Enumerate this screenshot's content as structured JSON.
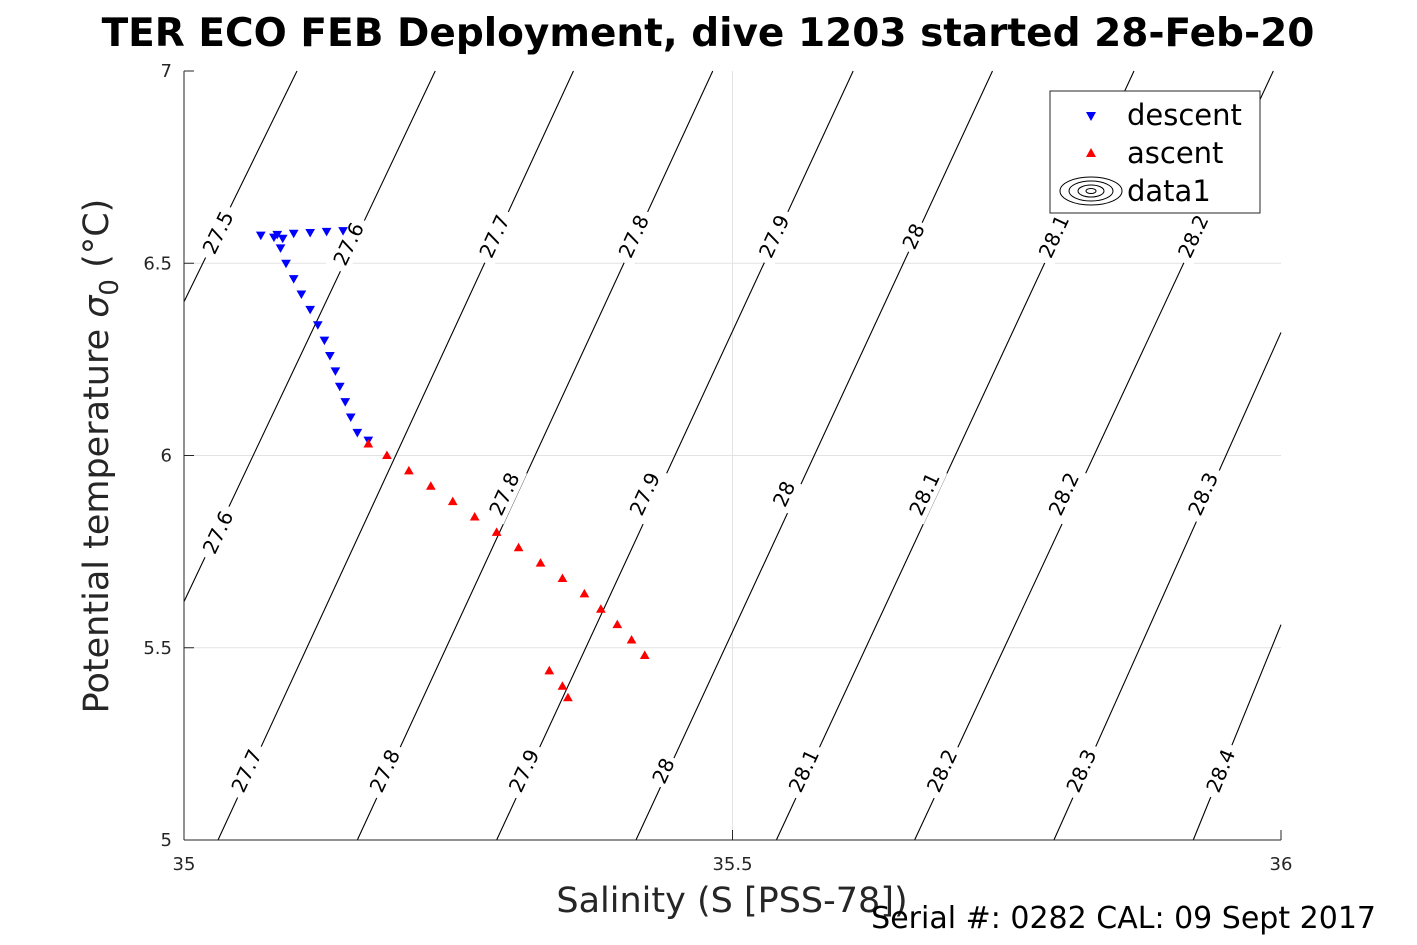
{
  "chart_data": {
    "type": "scatter",
    "title": "TER ECO FEB Deployment, dive 1203 started 28-Feb-20",
    "xlabel": "Salinity (S [PSS-78])",
    "ylabel_main": "Potential temperature ",
    "ylabel_symbol": "σ",
    "ylabel_subscript": "0",
    "ylabel_unit": " (°C)",
    "xlim": [
      35,
      36
    ],
    "ylim": [
      5,
      7
    ],
    "xticks": [
      35,
      35.5,
      36
    ],
    "xtick_labels": [
      "35",
      "35.5",
      "36"
    ],
    "yticks": [
      5,
      5.5,
      6,
      6.5,
      7
    ],
    "ytick_labels": [
      "5",
      "5.5",
      "6",
      "6.5",
      "7"
    ],
    "grid": true,
    "legend_position": "top-right",
    "legend": [
      "descent",
      "ascent",
      "data1"
    ],
    "series": [
      {
        "name": "descent",
        "marker": "triangle-down",
        "color": "#0000ff",
        "points": [
          [
            35.145,
            6.585
          ],
          [
            35.13,
            6.583
          ],
          [
            35.115,
            6.58
          ],
          [
            35.1,
            6.578
          ],
          [
            35.085,
            6.575
          ],
          [
            35.07,
            6.573
          ],
          [
            35.082,
            6.568
          ],
          [
            35.09,
            6.565
          ],
          [
            35.088,
            6.54
          ],
          [
            35.093,
            6.5
          ],
          [
            35.1,
            6.46
          ],
          [
            35.107,
            6.42
          ],
          [
            35.115,
            6.38
          ],
          [
            35.122,
            6.34
          ],
          [
            35.128,
            6.3
          ],
          [
            35.133,
            6.26
          ],
          [
            35.138,
            6.22
          ],
          [
            35.142,
            6.18
          ],
          [
            35.147,
            6.14
          ],
          [
            35.152,
            6.1
          ],
          [
            35.158,
            6.06
          ],
          [
            35.168,
            6.04
          ]
        ]
      },
      {
        "name": "ascent",
        "marker": "triangle-up",
        "color": "#ff0000",
        "points": [
          [
            35.168,
            6.03
          ],
          [
            35.185,
            6.0
          ],
          [
            35.205,
            5.96
          ],
          [
            35.225,
            5.92
          ],
          [
            35.245,
            5.88
          ],
          [
            35.265,
            5.84
          ],
          [
            35.285,
            5.8
          ],
          [
            35.305,
            5.76
          ],
          [
            35.325,
            5.72
          ],
          [
            35.345,
            5.68
          ],
          [
            35.365,
            5.64
          ],
          [
            35.38,
            5.6
          ],
          [
            35.395,
            5.56
          ],
          [
            35.408,
            5.52
          ],
          [
            35.42,
            5.48
          ],
          [
            35.333,
            5.44
          ],
          [
            35.345,
            5.4
          ],
          [
            35.35,
            5.37
          ]
        ]
      }
    ],
    "contours": {
      "name": "data1",
      "levels": [
        27.5,
        27.6,
        27.7,
        27.8,
        27.9,
        28,
        28.1,
        28.2,
        28.3,
        28.4
      ],
      "segments": [
        {
          "level": 27.5,
          "p0": [
            35.0,
            6.4
          ],
          "p1": [
            35.103,
            7.0
          ],
          "labels": [
            {
              "text": "27.5",
              "at": [
                35.031,
                6.58
              ]
            }
          ]
        },
        {
          "level": 27.6,
          "p0": [
            35.0,
            5.62
          ],
          "p1": [
            35.229,
            7.0
          ],
          "labels": [
            {
              "text": "27.6",
              "at": [
                35.15,
                6.55
              ]
            },
            {
              "text": "27.6",
              "at": [
                35.031,
                5.8
              ]
            }
          ]
        },
        {
          "level": 27.7,
          "p0": [
            35.031,
            5.0
          ],
          "p1": [
            35.355,
            7.0
          ],
          "labels": [
            {
              "text": "27.7",
              "at": [
                35.283,
                6.57
              ]
            },
            {
              "text": "27.7",
              "at": [
                35.057,
                5.18
              ]
            }
          ]
        },
        {
          "level": 27.8,
          "p0": [
            35.158,
            5.0
          ],
          "p1": [
            35.482,
            7.0
          ],
          "labels": [
            {
              "text": "27.8",
              "at": [
                35.41,
                6.57
              ]
            },
            {
              "text": "27.8",
              "at": [
                35.292,
                5.9
              ]
            },
            {
              "text": "27.8",
              "at": [
                35.183,
                5.18
              ]
            }
          ]
        },
        {
          "level": 27.9,
          "p0": [
            35.285,
            5.0
          ],
          "p1": [
            35.61,
            7.0
          ],
          "labels": [
            {
              "text": "27.9",
              "at": [
                35.538,
                6.57
              ]
            },
            {
              "text": "27.9",
              "at": [
                35.42,
                5.9
              ]
            },
            {
              "text": "27.9",
              "at": [
                35.31,
                5.18
              ]
            }
          ]
        },
        {
          "level": 28.0,
          "p0": [
            35.412,
            5.0
          ],
          "p1": [
            35.737,
            7.0
          ],
          "labels": [
            {
              "text": "28",
              "at": [
                35.665,
                6.57
              ]
            },
            {
              "text": "28",
              "at": [
                35.547,
                5.9
              ]
            },
            {
              "text": "28",
              "at": [
                35.437,
                5.18
              ]
            }
          ]
        },
        {
          "level": 28.1,
          "p0": [
            35.54,
            5.0
          ],
          "p1": [
            35.866,
            7.0
          ],
          "labels": [
            {
              "text": "28.1",
              "at": [
                35.793,
                6.57
              ]
            },
            {
              "text": "28.1",
              "at": [
                35.675,
                5.9
              ]
            },
            {
              "text": "28.1",
              "at": [
                35.565,
                5.18
              ]
            }
          ]
        },
        {
          "level": 28.2,
          "p0": [
            35.666,
            5.0
          ],
          "p1": [
            35.993,
            7.0
          ],
          "labels": [
            {
              "text": "28.2",
              "at": [
                35.92,
                6.57
              ]
            },
            {
              "text": "28.2",
              "at": [
                35.802,
                5.9
              ]
            },
            {
              "text": "28.2",
              "at": [
                35.691,
                5.18
              ]
            }
          ]
        },
        {
          "level": 28.3,
          "p0": [
            35.793,
            5.0
          ],
          "p1": [
            36.0,
            6.32
          ],
          "labels": [
            {
              "text": "28.3",
              "at": [
                35.929,
                5.9
              ]
            },
            {
              "text": "28.3",
              "at": [
                35.818,
                5.18
              ]
            }
          ]
        },
        {
          "level": 28.4,
          "p0": [
            35.92,
            5.0
          ],
          "p1": [
            36.0,
            5.56
          ],
          "labels": [
            {
              "text": "28.4",
              "at": [
                35.945,
                5.18
              ]
            }
          ]
        }
      ]
    }
  },
  "footer": {
    "serial_text": "Serial #: 0282  CAL: 09 Sept 2017"
  }
}
